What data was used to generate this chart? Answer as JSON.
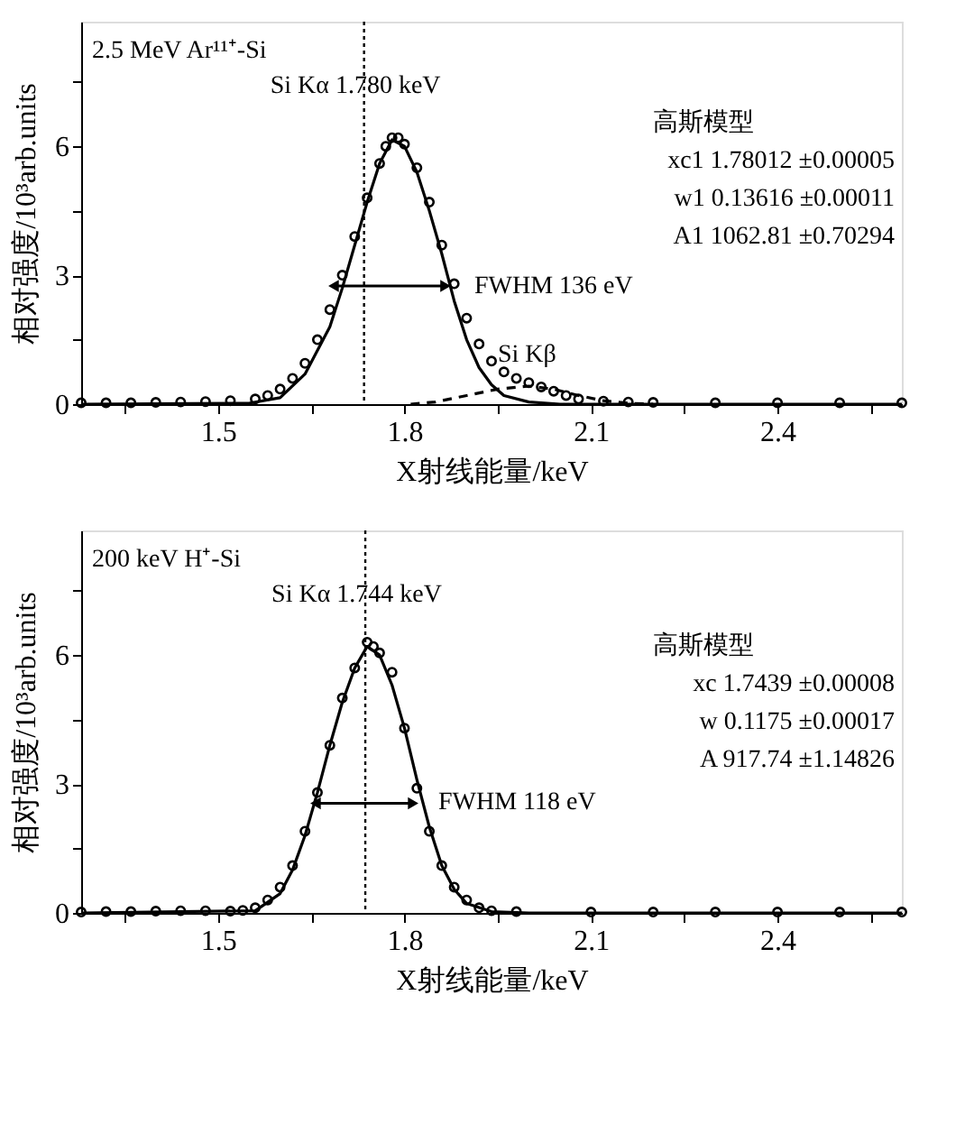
{
  "chart_data": [
    {
      "type": "scatter",
      "xlabel": "X射线能量/keV",
      "ylabel": "相对强度/10³arb.units",
      "xlim": [
        1.28,
        2.6
      ],
      "ylim": [
        0,
        8.9
      ],
      "xticks": [
        {
          "value": 1.35,
          "label": null
        },
        1.5,
        {
          "value": 1.65,
          "label": null
        },
        1.8,
        {
          "value": 1.95,
          "label": null
        },
        2.1,
        {
          "value": 2.25,
          "label": null
        },
        2.4,
        {
          "value": 2.55,
          "label": null
        }
      ],
      "yticks": [
        0,
        {
          "value": 1.5,
          "label": null
        },
        3,
        {
          "value": 4.5,
          "label": null
        },
        6,
        {
          "value": 7.5,
          "label": null
        }
      ],
      "grid": false,
      "series": [
        {
          "marker": "circle",
          "color": "#000000",
          "x": [
            1.28,
            1.32,
            1.36,
            1.4,
            1.44,
            1.48,
            1.52,
            1.56,
            1.58,
            1.6,
            1.62,
            1.64,
            1.66,
            1.68,
            1.7,
            1.72,
            1.74,
            1.76,
            1.77,
            1.78,
            1.79,
            1.8,
            1.82,
            1.84,
            1.86,
            1.88,
            1.9,
            1.92,
            1.94,
            1.96,
            1.98,
            2.0,
            2.02,
            2.04,
            2.06,
            2.08,
            2.12,
            2.16,
            2.2,
            2.3,
            2.4,
            2.5,
            2.6
          ],
          "values": [
            0.03,
            0.03,
            0.03,
            0.04,
            0.05,
            0.06,
            0.08,
            0.12,
            0.2,
            0.35,
            0.6,
            0.95,
            1.5,
            2.2,
            3.0,
            3.9,
            4.8,
            5.6,
            6.0,
            6.2,
            6.2,
            6.05,
            5.5,
            4.7,
            3.7,
            2.8,
            2.0,
            1.4,
            1.0,
            0.75,
            0.6,
            0.5,
            0.4,
            0.3,
            0.2,
            0.12,
            0.07,
            0.05,
            0.04,
            0.03,
            0.03,
            0.03,
            0.03
          ]
        },
        {
          "type": "line",
          "line_style": "solid",
          "color": "#000000",
          "x": [
            1.28,
            1.55,
            1.6,
            1.64,
            1.68,
            1.7,
            1.72,
            1.74,
            1.76,
            1.78,
            1.8,
            1.82,
            1.84,
            1.86,
            1.88,
            1.9,
            1.92,
            1.94,
            1.96,
            2.0,
            2.05,
            2.6
          ],
          "values": [
            0,
            0.02,
            0.15,
            0.7,
            1.8,
            2.7,
            3.7,
            4.7,
            5.6,
            6.15,
            6.0,
            5.4,
            4.5,
            3.5,
            2.4,
            1.5,
            0.85,
            0.45,
            0.2,
            0.05,
            0,
            0
          ]
        },
        {
          "type": "line",
          "line_style": "dashed",
          "color": "#000000",
          "x": [
            1.81,
            1.85,
            1.9,
            1.95,
            2.0,
            2.04,
            2.08,
            2.12,
            2.16,
            2.2
          ],
          "values": [
            0,
            0.05,
            0.2,
            0.35,
            0.42,
            0.35,
            0.2,
            0.08,
            0.02,
            0
          ]
        },
        {
          "type": "line",
          "line_style": "solid",
          "marker": "triangle",
          "color": "#000000",
          "x": [
            1.686,
            1.866
          ],
          "values": [
            2.75,
            2.75
          ]
        }
      ],
      "ref_lines": [
        {
          "axis": "x",
          "value": 1.735,
          "line_style": "dotted",
          "color": "#000000"
        }
      ],
      "annotations": [
        "2.5 MeV Ar¹¹⁺-Si",
        {
          "text": "Si Kα 1.780 keV",
          "x": 1.735,
          "y": 7.4
        },
        "高斯模型",
        "xc1   1.78012   ±0.00005",
        "w1   0.13616   ±0.00011",
        "A1   1062.81   ±0.70294",
        "FWHM 136 eV",
        {
          "text": "Si Kβ",
          "x": 1.95,
          "y": 1.15
        }
      ]
    },
    {
      "type": "scatter",
      "xlabel": "X射线能量/keV",
      "ylabel": "相对强度/10³arb.units",
      "xlim": [
        1.28,
        2.6
      ],
      "ylim": [
        0,
        8.9
      ],
      "xticks": [
        {
          "value": 1.35,
          "label": null
        },
        1.5,
        {
          "value": 1.65,
          "label": null
        },
        1.8,
        {
          "value": 1.95,
          "label": null
        },
        2.1,
        {
          "value": 2.25,
          "label": null
        },
        2.4,
        {
          "value": 2.55,
          "label": null
        }
      ],
      "yticks": [
        0,
        {
          "value": 1.5,
          "label": null
        },
        3,
        {
          "value": 4.5,
          "label": null
        },
        6,
        {
          "value": 7.5,
          "label": null
        }
      ],
      "grid": false,
      "series": [
        {
          "marker": "circle",
          "color": "#000000",
          "x": [
            1.28,
            1.32,
            1.36,
            1.4,
            1.44,
            1.48,
            1.52,
            1.54,
            1.56,
            1.58,
            1.6,
            1.62,
            1.64,
            1.66,
            1.68,
            1.7,
            1.72,
            1.74,
            1.75,
            1.76,
            1.78,
            1.8,
            1.82,
            1.84,
            1.86,
            1.88,
            1.9,
            1.92,
            1.94,
            1.98,
            2.1,
            2.2,
            2.3,
            2.4,
            2.5,
            2.6
          ],
          "values": [
            0.02,
            0.03,
            0.03,
            0.04,
            0.05,
            0.05,
            0.04,
            0.06,
            0.12,
            0.3,
            0.6,
            1.1,
            1.9,
            2.8,
            3.9,
            5.0,
            5.7,
            6.3,
            6.2,
            6.05,
            5.6,
            4.3,
            2.9,
            1.9,
            1.1,
            0.6,
            0.3,
            0.12,
            0.05,
            0.03,
            0.02,
            0.02,
            0.02,
            0.02,
            0.02,
            0.02
          ]
        },
        {
          "type": "line",
          "line_style": "solid",
          "color": "#000000",
          "x": [
            1.28,
            1.56,
            1.6,
            1.62,
            1.64,
            1.66,
            1.68,
            1.7,
            1.72,
            1.74,
            1.76,
            1.78,
            1.8,
            1.82,
            1.84,
            1.86,
            1.88,
            1.9,
            1.94,
            2.0,
            2.6
          ],
          "values": [
            0,
            0.05,
            0.45,
            1.0,
            1.8,
            2.8,
            3.9,
            4.9,
            5.7,
            6.2,
            6.0,
            5.3,
            4.3,
            3.1,
            2.0,
            1.1,
            0.55,
            0.22,
            0.03,
            0,
            0
          ]
        },
        {
          "type": "line",
          "line_style": "solid",
          "marker": "triangle",
          "color": "#000000",
          "x": [
            1.657,
            1.814
          ],
          "values": [
            2.55,
            2.55
          ]
        }
      ],
      "ref_lines": [
        {
          "axis": "x",
          "value": 1.737,
          "line_style": "dotted",
          "color": "#000000"
        }
      ],
      "annotations": [
        "200 keV H⁺-Si",
        {
          "text": "Si Kα 1.744 keV",
          "x": 1.737,
          "y": 7.4
        },
        "高斯模型",
        "xc   1.7439   ±0.00008",
        "w   0.1175   ±0.00017",
        "A   917.74   ±1.14826",
        "FWHM 118 eV"
      ]
    }
  ]
}
